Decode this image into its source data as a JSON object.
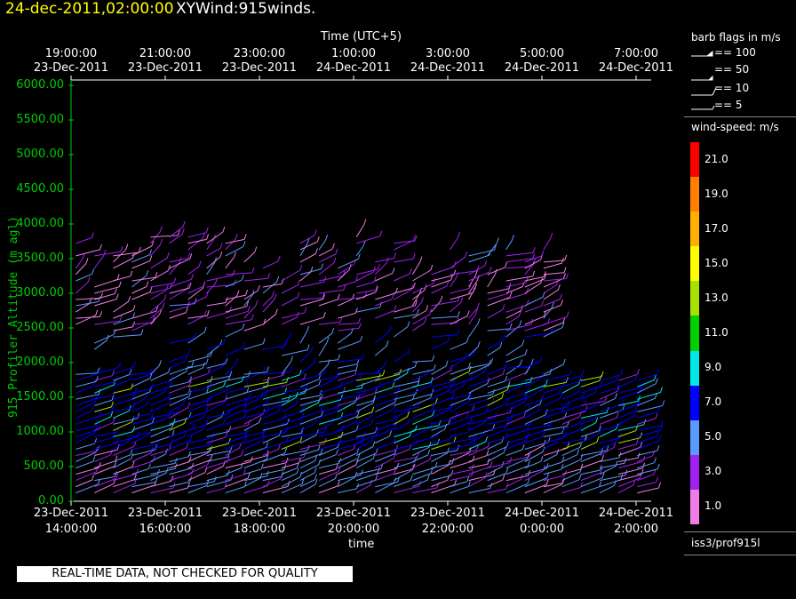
{
  "header": {
    "date_time": "24-dec-2011,02:00:00",
    "plot_name": "XYWind:915winds."
  },
  "chart_data": {
    "type": "scatter",
    "title": "",
    "x_label_top": "Time (UTC+5)",
    "x_label_bottom": "time",
    "y_label": "915 Profiler Altitude (m agl)",
    "y_range": [
      0,
      6000
    ],
    "y_ticks": [
      "0.00",
      "500.00",
      "1000.00",
      "1500.00",
      "2000.00",
      "2500.00",
      "3000.00",
      "3500.00",
      "4000.00",
      "4500.00",
      "5000.00",
      "5500.00",
      "6000.00"
    ],
    "x_ticks_top": [
      {
        "time": "19:00:00",
        "date": "23-Dec-2011"
      },
      {
        "time": "21:00:00",
        "date": "23-Dec-2011"
      },
      {
        "time": "23:00:00",
        "date": "23-Dec-2011"
      },
      {
        "time": "1:00:00",
        "date": "24-Dec-2011"
      },
      {
        "time": "3:00:00",
        "date": "24-Dec-2011"
      },
      {
        "time": "5:00:00",
        "date": "24-Dec-2011"
      },
      {
        "time": "7:00:00",
        "date": "24-Dec-2011"
      }
    ],
    "x_ticks_bottom": [
      {
        "date": "23-Dec-2011",
        "time": "14:00:00"
      },
      {
        "date": "23-Dec-2011",
        "time": "16:00:00"
      },
      {
        "date": "23-Dec-2011",
        "time": "18:00:00"
      },
      {
        "date": "23-Dec-2011",
        "time": "20:00:00"
      },
      {
        "date": "23-Dec-2011",
        "time": "22:00:00"
      },
      {
        "date": "24-Dec-2011",
        "time": "0:00:00"
      },
      {
        "date": "24-Dec-2011",
        "time": "2:00:00"
      }
    ],
    "x_range_hours": [
      14.0,
      26.4
    ],
    "profile_times_hours": [
      14.1,
      14.5,
      14.9,
      15.3,
      15.7,
      16.1,
      16.5,
      16.9,
      17.3,
      17.7,
      18.1,
      18.5,
      18.9,
      19.3,
      19.7,
      20.1,
      20.5,
      20.9,
      21.3,
      21.7,
      22.1,
      22.5,
      22.9,
      23.3,
      23.7,
      24.1,
      24.5,
      24.9,
      25.3,
      25.7,
      26.1
    ],
    "ground_color": "#ffffff",
    "axis_color": "#00cc00"
  },
  "legend": {
    "barb_title": "barb flags in m/s",
    "barb_flags": [
      "== 100",
      "== 50",
      "== 10",
      "== 5"
    ],
    "speed_title": "wind-speed: m/s",
    "speed_labels": [
      "21.0",
      "19.0",
      "17.0",
      "15.0",
      "13.0",
      "11.0",
      "9.0",
      "7.0",
      "5.0",
      "3.0",
      "1.0"
    ],
    "speed_colors": [
      "#ff0000",
      "#ff7f00",
      "#ffb000",
      "#ffff00",
      "#a8e000",
      "#00d000",
      "#00e8e8",
      "#0000ff",
      "#5a9aff",
      "#a020f0",
      "#f07ce8"
    ],
    "source": "iss3/prof915l"
  },
  "footer": {
    "qc_notice": "REAL-TIME DATA, NOT CHECKED FOR QUALITY"
  }
}
